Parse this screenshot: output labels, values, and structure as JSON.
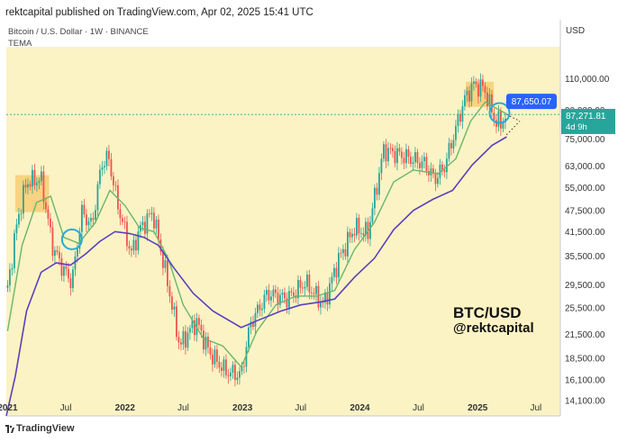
{
  "header": {
    "publish_line": "rektcapital published on TradingView.com, Apr 02, 2025 15:41 UTC",
    "symbol_line": "Bitcoin / U.S. Dollar · 1W · BINANCE",
    "indicator_label": "TEMA",
    "currency": "USD"
  },
  "footer": {
    "brand": "TradingView"
  },
  "watermark": {
    "line1": "BTC/USD",
    "line2": "@rektcapital"
  },
  "colors": {
    "background": "#fbf3c4",
    "up_candle": "#26a69a",
    "down_candle": "#ef5350",
    "fast_line": "#6bb56b",
    "slow_line": "#5b3fc0",
    "highlight_box": "#f5b84a",
    "circle": "#2aa9d6",
    "callout_blue": "#2962ff",
    "price_tag": "#26a69a"
  },
  "chart_data": {
    "type": "line",
    "x_axis": {
      "ticks": [
        "2021",
        "Jul",
        "2022",
        "Jul",
        "2023",
        "Jul",
        "2024",
        "Jul",
        "2025",
        "Jul"
      ],
      "range": [
        "2020-12-28",
        "2025-09-15"
      ]
    },
    "y_axis": {
      "scale": "log",
      "ticks": [
        110000,
        90000,
        75000,
        63000,
        55000,
        47500,
        41500,
        35500,
        29500,
        25500,
        21500,
        18500,
        16100,
        14100
      ],
      "tick_labels": [
        "110,000.00",
        "90,000.00",
        "75,000.00",
        "63,000.00",
        "55,000.00",
        "47,500.00",
        "41,500.00",
        "35,500.00",
        "29,500.00",
        "25,500.00",
        "21,500.00",
        "18,500.00",
        "16,100.00",
        "14,100.00"
      ],
      "range": [
        12800,
        135000
      ]
    },
    "price_series": [
      [
        "2021-01-01",
        29000
      ],
      [
        "2021-02-01",
        45000
      ],
      [
        "2021-03-01",
        57000
      ],
      [
        "2021-04-15",
        58000
      ],
      [
        "2021-05-20",
        38000
      ],
      [
        "2021-06-20",
        33000
      ],
      [
        "2021-07-20",
        30000
      ],
      [
        "2021-08-20",
        47000
      ],
      [
        "2021-09-20",
        43000
      ],
      [
        "2021-10-20",
        64000
      ],
      [
        "2021-11-10",
        67000
      ],
      [
        "2021-12-10",
        49000
      ],
      [
        "2022-01-20",
        36000
      ],
      [
        "2022-02-15",
        42000
      ],
      [
        "2022-03-28",
        47000
      ],
      [
        "2022-05-10",
        31000
      ],
      [
        "2022-06-20",
        20000
      ],
      [
        "2022-08-10",
        23500
      ],
      [
        "2022-09-20",
        19200
      ],
      [
        "2022-11-10",
        17000
      ],
      [
        "2022-12-28",
        16600
      ],
      [
        "2023-01-25",
        23000
      ],
      [
        "2023-03-20",
        28000
      ],
      [
        "2023-05-20",
        27000
      ],
      [
        "2023-07-15",
        30000
      ],
      [
        "2023-09-10",
        26000
      ],
      [
        "2023-10-25",
        34500
      ],
      [
        "2023-12-15",
        42500
      ],
      [
        "2024-01-25",
        41000
      ],
      [
        "2024-03-15",
        70000
      ],
      [
        "2024-05-20",
        67000
      ],
      [
        "2024-07-20",
        64000
      ],
      [
        "2024-08-20",
        58000
      ],
      [
        "2024-09-20",
        63000
      ],
      [
        "2024-11-20",
        96000
      ],
      [
        "2024-12-17",
        106000
      ],
      [
        "2025-01-20",
        104000
      ],
      [
        "2025-02-25",
        84000
      ],
      [
        "2025-03-15",
        83000
      ],
      [
        "2025-04-01",
        87272
      ]
    ],
    "series": [
      {
        "role": "fast",
        "points": [
          [
            "2021-01-01",
            22000
          ],
          [
            "2021-02-15",
            38000
          ],
          [
            "2021-04-01",
            50000
          ],
          [
            "2021-05-15",
            52000
          ],
          [
            "2021-06-25",
            40000
          ],
          [
            "2021-08-10",
            38500
          ],
          [
            "2021-10-01",
            44000
          ],
          [
            "2021-11-15",
            54000
          ],
          [
            "2022-01-01",
            49000
          ],
          [
            "2022-02-15",
            42500
          ],
          [
            "2022-04-01",
            41500
          ],
          [
            "2022-05-15",
            35000
          ],
          [
            "2022-07-01",
            26000
          ],
          [
            "2022-09-01",
            21000
          ],
          [
            "2022-11-01",
            20000
          ],
          [
            "2022-12-28",
            17500
          ],
          [
            "2023-02-15",
            22000
          ],
          [
            "2023-04-15",
            26000
          ],
          [
            "2023-06-15",
            27500
          ],
          [
            "2023-08-20",
            27500
          ],
          [
            "2023-10-15",
            28500
          ],
          [
            "2023-12-15",
            37000
          ],
          [
            "2024-02-15",
            44000
          ],
          [
            "2024-04-15",
            57000
          ],
          [
            "2024-06-15",
            61500
          ],
          [
            "2024-09-01",
            60000
          ],
          [
            "2024-10-25",
            66000
          ],
          [
            "2024-12-10",
            84000
          ],
          [
            "2025-01-25",
            95000
          ],
          [
            "2025-03-01",
            91000
          ],
          [
            "2025-04-01",
            88000
          ]
        ]
      },
      {
        "role": "slow",
        "points": [
          [
            "2020-12-28",
            12800
          ],
          [
            "2021-01-25",
            16500
          ],
          [
            "2021-03-01",
            25000
          ],
          [
            "2021-04-15",
            32000
          ],
          [
            "2021-06-01",
            34000
          ],
          [
            "2021-07-15",
            33500
          ],
          [
            "2021-09-01",
            36000
          ],
          [
            "2021-10-15",
            39000
          ],
          [
            "2021-12-01",
            41500
          ],
          [
            "2022-01-15",
            41000
          ],
          [
            "2022-03-01",
            40000
          ],
          [
            "2022-04-15",
            38000
          ],
          [
            "2022-06-01",
            33000
          ],
          [
            "2022-08-01",
            28000
          ],
          [
            "2022-10-01",
            25000
          ],
          [
            "2022-12-28",
            22500
          ],
          [
            "2023-02-15",
            23500
          ],
          [
            "2023-05-01",
            25000
          ],
          [
            "2023-07-01",
            26000
          ],
          [
            "2023-09-01",
            26500
          ],
          [
            "2023-10-15",
            27000
          ],
          [
            "2023-12-15",
            31000
          ],
          [
            "2024-02-15",
            35000
          ],
          [
            "2024-04-15",
            42000
          ],
          [
            "2024-06-15",
            47500
          ],
          [
            "2024-08-15",
            51000
          ],
          [
            "2024-10-15",
            54000
          ],
          [
            "2024-12-15",
            63500
          ],
          [
            "2025-02-15",
            72000
          ],
          [
            "2025-04-01",
            76000
          ]
        ]
      }
    ],
    "highlight_zones": [
      {
        "from": "2021-01-25",
        "to": "2021-05-10",
        "low": 47000,
        "high": 59500
      },
      {
        "from": "2024-11-25",
        "to": "2025-02-20",
        "low": 92000,
        "high": 108000
      }
    ],
    "circles": [
      {
        "date": "2021-07-20",
        "price": 39500
      },
      {
        "date": "2025-03-10",
        "price": 88500
      }
    ],
    "projection": {
      "upper": [
        [
          "2025-04-01",
          87650
        ],
        [
          "2025-05-12",
          84000
        ]
      ],
      "lower": [
        [
          "2025-04-01",
          77000
        ],
        [
          "2025-05-12",
          84000
        ]
      ]
    },
    "reference_price": 87650,
    "callout": {
      "label": "87,650.07",
      "value": 87650.07
    },
    "current_price": {
      "label": "87,271.81",
      "value": 87271.81,
      "countdown": "4d 9h"
    },
    "grid": false,
    "legend": "none"
  }
}
